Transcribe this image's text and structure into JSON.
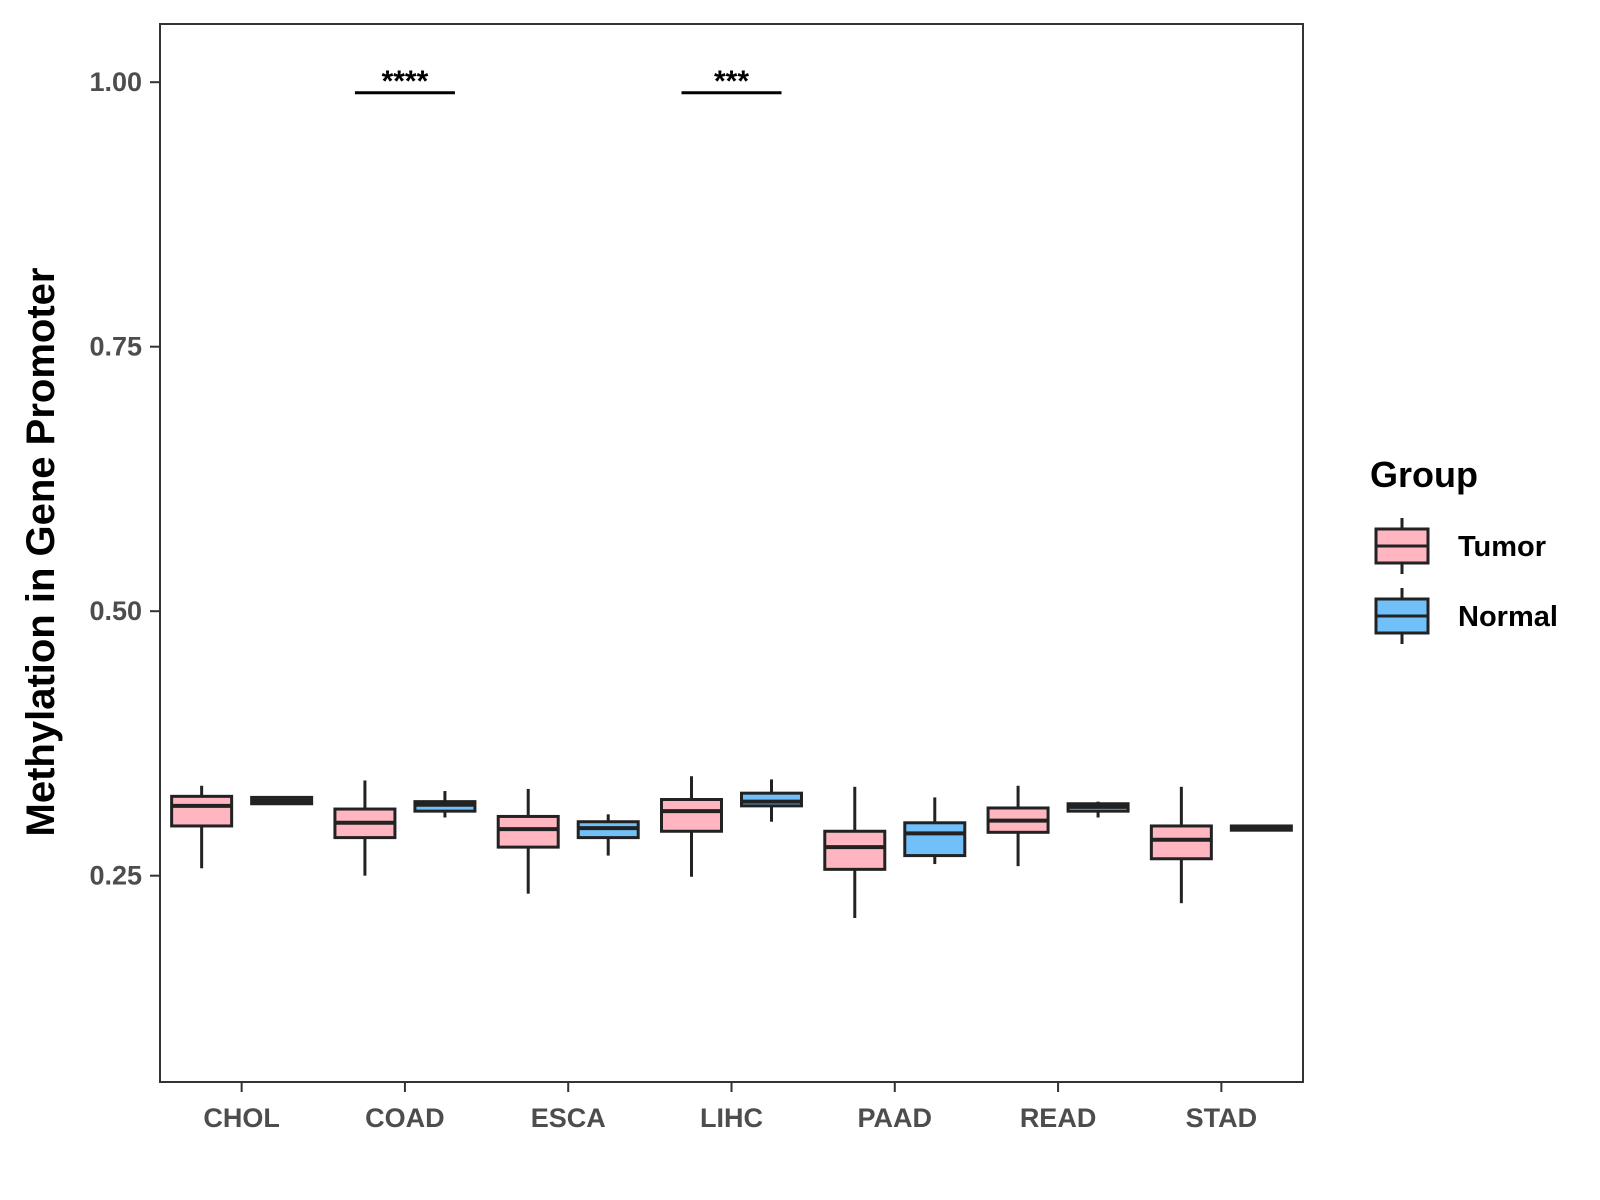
{
  "chart_data": {
    "type": "boxplot",
    "title": "",
    "xlabel": "",
    "ylabel": "Methylation in Gene Promoter",
    "ylim": [
      0.055,
      1.055
    ],
    "yticks": [
      "0.25",
      "0.50",
      "0.75",
      "1.00"
    ],
    "categories": [
      "CHOL",
      "COAD",
      "ESCA",
      "LIHC",
      "PAAD",
      "READ",
      "STAD"
    ],
    "legend": {
      "title": "Group",
      "position": "right",
      "entries": [
        {
          "name": "Tumor",
          "color": "#FFB6C1"
        },
        {
          "name": "Normal",
          "color": "#71C0FA"
        }
      ]
    },
    "series": [
      {
        "name": "Tumor",
        "color": "#FFB6C1",
        "boxes": [
          {
            "category": "CHOL",
            "min": 0.257,
            "q1": 0.297,
            "median": 0.316,
            "q3": 0.325,
            "max": 0.335
          },
          {
            "category": "COAD",
            "min": 0.25,
            "q1": 0.286,
            "median": 0.3,
            "q3": 0.313,
            "max": 0.34
          },
          {
            "category": "ESCA",
            "min": 0.233,
            "q1": 0.277,
            "median": 0.294,
            "q3": 0.306,
            "max": 0.332
          },
          {
            "category": "LIHC",
            "min": 0.249,
            "q1": 0.292,
            "median": 0.311,
            "q3": 0.322,
            "max": 0.344
          },
          {
            "category": "PAAD",
            "min": 0.21,
            "q1": 0.256,
            "median": 0.277,
            "q3": 0.292,
            "max": 0.334
          },
          {
            "category": "READ",
            "min": 0.259,
            "q1": 0.291,
            "median": 0.302,
            "q3": 0.314,
            "max": 0.335
          },
          {
            "category": "STAD",
            "min": 0.224,
            "q1": 0.266,
            "median": 0.284,
            "q3": 0.297,
            "max": 0.334
          }
        ]
      },
      {
        "name": "Normal",
        "color": "#71C0FA",
        "boxes": [
          {
            "category": "CHOL",
            "min": 0.318,
            "q1": 0.318,
            "median": 0.321,
            "q3": 0.324,
            "max": 0.325
          },
          {
            "category": "COAD",
            "min": 0.305,
            "q1": 0.311,
            "median": 0.317,
            "q3": 0.32,
            "max": 0.33
          },
          {
            "category": "ESCA",
            "min": 0.269,
            "q1": 0.286,
            "median": 0.295,
            "q3": 0.301,
            "max": 0.308
          },
          {
            "category": "LIHC",
            "min": 0.301,
            "q1": 0.316,
            "median": 0.32,
            "q3": 0.328,
            "max": 0.341
          },
          {
            "category": "PAAD",
            "min": 0.261,
            "q1": 0.269,
            "median": 0.29,
            "q3": 0.3,
            "max": 0.324
          },
          {
            "category": "READ",
            "min": 0.305,
            "q1": 0.311,
            "median": 0.315,
            "q3": 0.318,
            "max": 0.32
          },
          {
            "category": "STAD",
            "min": 0.292,
            "q1": 0.293,
            "median": 0.295,
            "q3": 0.297,
            "max": 0.298
          }
        ]
      }
    ],
    "annotations": [
      {
        "category": "COAD",
        "text": "****",
        "y": 0.99
      },
      {
        "category": "LIHC",
        "text": "***",
        "y": 0.99
      }
    ]
  }
}
